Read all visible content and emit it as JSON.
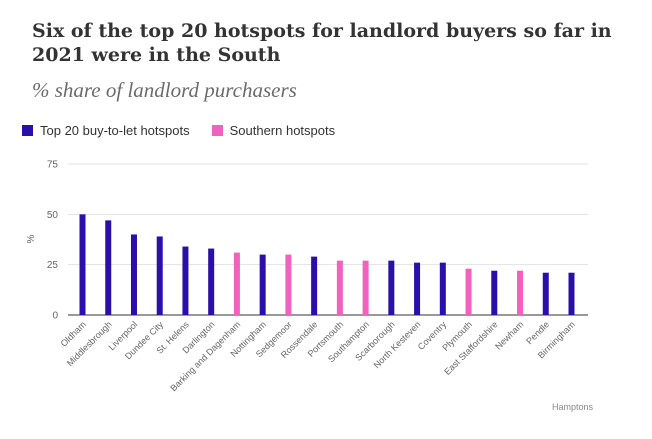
{
  "header": {
    "title": "Six of the top 20 hotspots for landlord buyers so far in 2021 were in the South",
    "subtitle": "% share of landlord purchasers"
  },
  "source": "Hamptons",
  "colors": {
    "top20": "#2a0fa8",
    "southern": "#f261c0",
    "grid": "#e3e3e3",
    "axis": "#333333",
    "tick_text": "#666666"
  },
  "chart_data": {
    "type": "bar",
    "title": "Six of the top 20 hotspots for landlord buyers so far in 2021 were in the South",
    "subtitle": "% share of landlord purchasers",
    "xlabel": "",
    "ylabel": "%",
    "ylim": [
      0,
      75
    ],
    "yticks": [
      0,
      25,
      50,
      75
    ],
    "grid": true,
    "legend_position": "top-left",
    "series": [
      {
        "name": "Top 20 buy-to-let hotspots",
        "color": "#2a0fa8"
      },
      {
        "name": "Southern hotspots",
        "color": "#f261c0"
      }
    ],
    "bars": [
      {
        "category": "Oldham",
        "value": 50,
        "series": 0
      },
      {
        "category": "Middlesbrough",
        "value": 47,
        "series": 0
      },
      {
        "category": "Liverpool",
        "value": 40,
        "series": 0
      },
      {
        "category": "Dundee City",
        "value": 39,
        "series": 0
      },
      {
        "category": "St. Helens",
        "value": 34,
        "series": 0
      },
      {
        "category": "Darlington",
        "value": 33,
        "series": 0
      },
      {
        "category": "Barking and Dagenham",
        "value": 31,
        "series": 1
      },
      {
        "category": "Nottingham",
        "value": 30,
        "series": 0
      },
      {
        "category": "Sedgemoor",
        "value": 30,
        "series": 1
      },
      {
        "category": "Rossendale",
        "value": 29,
        "series": 0
      },
      {
        "category": "Portsmouth",
        "value": 27,
        "series": 1
      },
      {
        "category": "Southampton",
        "value": 27,
        "series": 1
      },
      {
        "category": "Scarborough",
        "value": 27,
        "series": 0
      },
      {
        "category": "North Kesteven",
        "value": 26,
        "series": 0
      },
      {
        "category": "Coventry",
        "value": 26,
        "series": 0
      },
      {
        "category": "Plymouth",
        "value": 23,
        "series": 1
      },
      {
        "category": "East Staffordshire",
        "value": 22,
        "series": 0
      },
      {
        "category": "Newham",
        "value": 22,
        "series": 1
      },
      {
        "category": "Pendle",
        "value": 21,
        "series": 0
      },
      {
        "category": "Birmingham",
        "value": 21,
        "series": 0
      }
    ]
  }
}
